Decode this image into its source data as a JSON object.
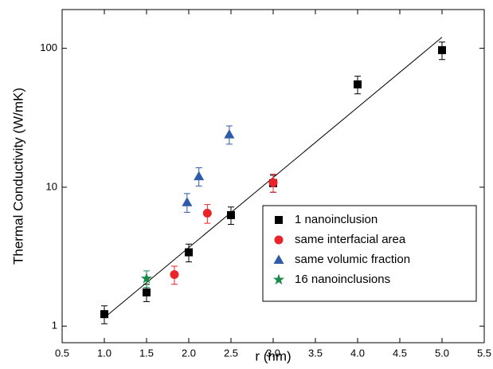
{
  "chart_data": {
    "type": "scatter",
    "xlabel": "r (nm)",
    "ylabel": "Thermal Conductivity (W/mK)",
    "xlim": [
      0.5,
      5.5
    ],
    "xticks": [
      0.5,
      {
        "value": 1,
        "label": "1.0"
      },
      1.5,
      {
        "value": 2,
        "label": "2.0"
      },
      2.5,
      {
        "value": 3,
        "label": "3.0"
      },
      3.5,
      {
        "value": 4,
        "label": "4.0"
      },
      4.5,
      {
        "value": 5,
        "label": "5.0"
      },
      5.5
    ],
    "ylim": [
      0.76,
      190
    ],
    "yticks": [
      1,
      10,
      100
    ],
    "ylog": true,
    "legend": "lower right",
    "series": [
      {
        "name": "1 nanoinclusion",
        "color": "#000000",
        "marker": "square",
        "x": [
          1,
          1.5,
          2,
          2.5,
          3,
          4,
          5
        ],
        "values": [
          1.22,
          1.75,
          3.4,
          6.3,
          10.7,
          55,
          97
        ],
        "errors": [
          0.18,
          0.25,
          0.5,
          0.9,
          1.5,
          8,
          14
        ]
      },
      {
        "name": "same interfacial area",
        "color": "#e8242a",
        "marker": "circle",
        "x": [
          1.83,
          2.22,
          3.0
        ],
        "values": [
          2.35,
          6.5,
          10.8
        ],
        "errors": [
          0.35,
          1.0,
          1.6
        ]
      },
      {
        "name": "same volumic fraction",
        "color": "#2e5ca8",
        "marker": "triangle",
        "x": [
          1.98,
          2.12,
          2.48
        ],
        "values": [
          7.8,
          12,
          24
        ],
        "errors": [
          1.2,
          1.8,
          3.6
        ]
      },
      {
        "name": "16 nanoinclusions",
        "color": "#1a8a4a",
        "marker": "star",
        "x": [
          1.5
        ],
        "values": [
          2.2
        ],
        "errors": [
          0.3
        ]
      }
    ],
    "fit_line": {
      "x": [
        1,
        5
      ],
      "values": [
        1.15,
        120
      ],
      "color": "#000000"
    }
  }
}
